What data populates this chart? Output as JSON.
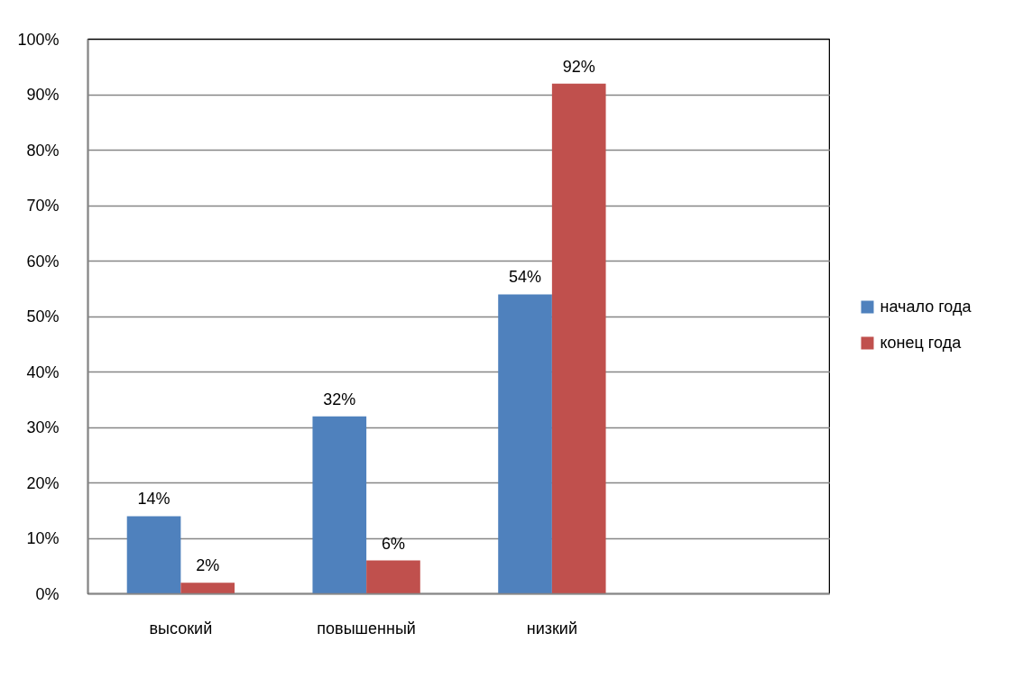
{
  "chart_data": {
    "type": "bar",
    "categories": [
      "высокий",
      "повышенный",
      "низкий",
      null
    ],
    "series": [
      {
        "name": "начало года",
        "color": "#4f81bd",
        "values": [
          14,
          32,
          54,
          null
        ],
        "value_labels": [
          "14%",
          "32%",
          "54%",
          null
        ]
      },
      {
        "name": "конец года",
        "color": "#c0504d",
        "values": [
          2,
          6,
          92,
          null
        ],
        "value_labels": [
          "2%",
          "6%",
          "92%",
          null
        ]
      }
    ],
    "ylim": [
      0,
      100
    ],
    "yticks": [
      {
        "value": 0,
        "label": "0%"
      },
      {
        "value": 10,
        "label": "10%"
      },
      {
        "value": 20,
        "label": "20%"
      },
      {
        "value": 30,
        "label": "30%"
      },
      {
        "value": 40,
        "label": "40%"
      },
      {
        "value": 50,
        "label": "50%"
      },
      {
        "value": 60,
        "label": "60%"
      },
      {
        "value": 70,
        "label": "70%"
      },
      {
        "value": 80,
        "label": "80%"
      },
      {
        "value": 90,
        "label": "90%"
      },
      {
        "value": 100,
        "label": "100%"
      }
    ],
    "grid": "y",
    "legend": "right"
  }
}
